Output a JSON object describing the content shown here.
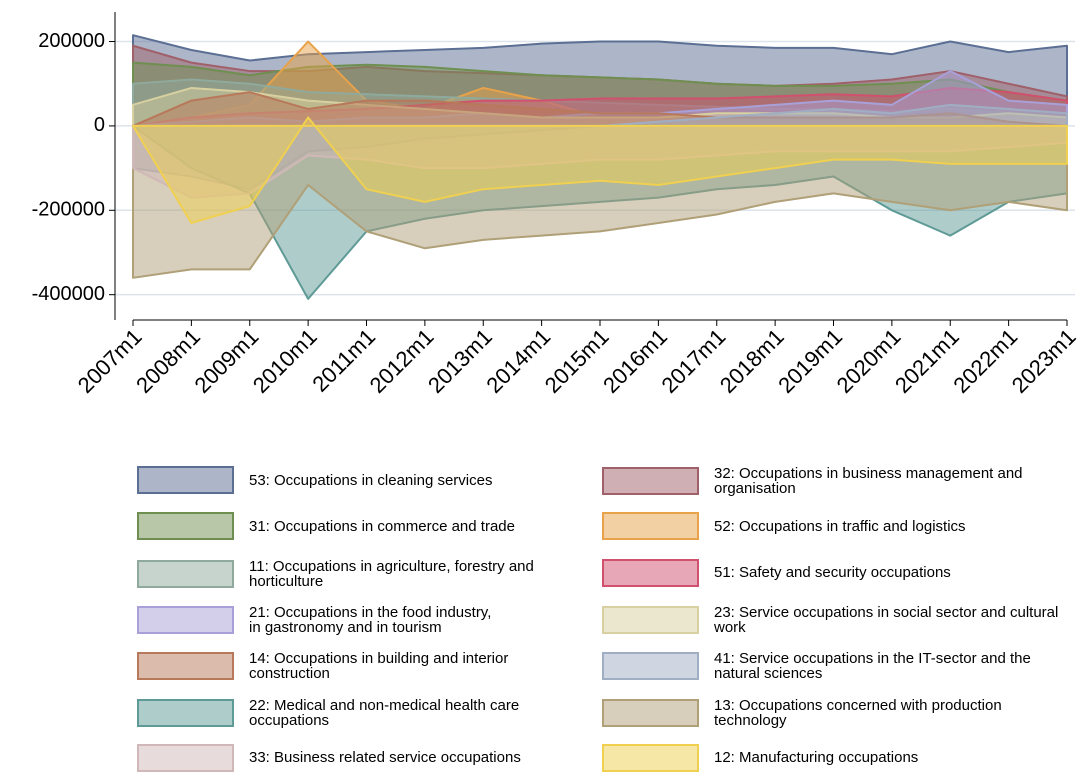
{
  "chart_data": {
    "type": "area",
    "x": [
      "2007m1",
      "2008m1",
      "2009m1",
      "2010m1",
      "2011m1",
      "2012m1",
      "2013m1",
      "2014m1",
      "2015m1",
      "2016m1",
      "2017m1",
      "2018m1",
      "2019m1",
      "2020m1",
      "2021m1",
      "2022m1",
      "2023m1"
    ],
    "ylim": [
      -460000,
      270000
    ],
    "yticks": [
      -400000,
      -200000,
      0,
      200000
    ],
    "grid": true,
    "series": [
      {
        "name": "53: Occupations in cleaning services",
        "color": "#5b6e93",
        "values": [
          215000,
          180000,
          155000,
          170000,
          175000,
          180000,
          185000,
          195000,
          200000,
          200000,
          190000,
          185000,
          185000,
          170000,
          200000,
          175000,
          190000
        ]
      },
      {
        "name": "32: Occupations in business management and organisation",
        "color": "#a0606a",
        "values": [
          190000,
          150000,
          130000,
          130000,
          140000,
          130000,
          125000,
          120000,
          115000,
          110000,
          100000,
          95000,
          100000,
          110000,
          130000,
          100000,
          70000
        ]
      },
      {
        "name": "31: Occupations in commerce and trade",
        "color": "#6f8f50",
        "values": [
          150000,
          140000,
          120000,
          140000,
          145000,
          140000,
          130000,
          120000,
          115000,
          110000,
          100000,
          95000,
          95000,
          100000,
          110000,
          80000,
          60000
        ]
      },
      {
        "name": "52: Occupations in traffic and logistics",
        "color": "#e8a24a",
        "values": [
          0,
          20000,
          50000,
          200000,
          60000,
          40000,
          90000,
          60000,
          20000,
          10000,
          10000,
          10000,
          10000,
          10000,
          20000,
          10000,
          10000
        ]
      },
      {
        "name": "11: Occupations in agriculture, forestry and horticulture",
        "color": "#8faa9c",
        "values": [
          100000,
          110000,
          100000,
          80000,
          75000,
          70000,
          65000,
          60000,
          55000,
          50000,
          45000,
          40000,
          40000,
          35000,
          40000,
          30000,
          20000
        ]
      },
      {
        "name": "51: Safety and security occupations",
        "color": "#d0506e",
        "values": [
          0,
          20000,
          30000,
          35000,
          40000,
          50000,
          60000,
          60000,
          65000,
          65000,
          65000,
          70000,
          75000,
          70000,
          90000,
          80000,
          60000
        ]
      },
      {
        "name": "21: Occupations in the food industry,\nin gastronomy and in tourism",
        "color": "#a8a0d8",
        "values": [
          0,
          10000,
          20000,
          10000,
          20000,
          20000,
          30000,
          20000,
          30000,
          30000,
          40000,
          50000,
          60000,
          50000,
          130000,
          60000,
          50000
        ]
      },
      {
        "name": "23: Service occupations in social sector and cultural work",
        "color": "#d8d0a0",
        "values": [
          50000,
          90000,
          80000,
          60000,
          50000,
          40000,
          30000,
          20000,
          20000,
          20000,
          30000,
          30000,
          30000,
          20000,
          20000,
          30000,
          20000
        ]
      },
      {
        "name": "14: Occupations in building and interior construction",
        "color": "#b8785a",
        "values": [
          0,
          60000,
          80000,
          40000,
          60000,
          60000,
          50000,
          40000,
          30000,
          30000,
          20000,
          20000,
          20000,
          20000,
          30000,
          10000,
          0
        ]
      },
      {
        "name": "41: Service occupations in the IT-sector and the natural sciences",
        "color": "#a0aec4",
        "values": [
          -100000,
          -120000,
          -150000,
          -60000,
          -50000,
          -30000,
          -20000,
          -10000,
          0,
          10000,
          20000,
          30000,
          40000,
          30000,
          50000,
          40000,
          30000
        ]
      },
      {
        "name": "22: Medical and non-medical health care occupations",
        "color": "#5e9a96",
        "values": [
          0,
          -100000,
          -160000,
          -410000,
          -250000,
          -220000,
          -200000,
          -190000,
          -180000,
          -170000,
          -150000,
          -140000,
          -120000,
          -200000,
          -260000,
          -180000,
          -160000
        ]
      },
      {
        "name": "13: Occupations concerned with production technology",
        "color": "#b0a078",
        "values": [
          -360000,
          -340000,
          -340000,
          -140000,
          -250000,
          -290000,
          -270000,
          -260000,
          -250000,
          -230000,
          -210000,
          -180000,
          -160000,
          -180000,
          -200000,
          -180000,
          -200000
        ]
      },
      {
        "name": "33: Business related service occupations",
        "color": "#d0b8b8",
        "values": [
          -100000,
          -170000,
          -160000,
          -70000,
          -80000,
          -100000,
          -100000,
          -90000,
          -80000,
          -80000,
          -70000,
          -60000,
          -60000,
          -60000,
          -60000,
          -50000,
          -40000
        ]
      },
      {
        "name": "12: Manufacturing occupations",
        "color": "#f0d050",
        "values": [
          0,
          -230000,
          -190000,
          20000,
          -150000,
          -180000,
          -150000,
          -140000,
          -130000,
          -140000,
          -120000,
          -100000,
          -80000,
          -80000,
          -90000,
          -90000,
          -90000
        ]
      }
    ]
  }
}
